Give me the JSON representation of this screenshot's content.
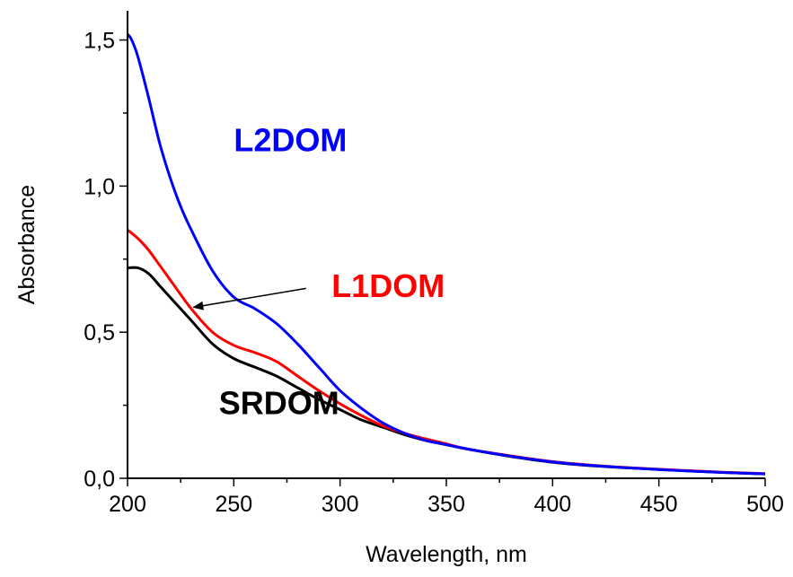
{
  "chart_data": {
    "type": "line",
    "xlabel": "Wavelength, nm",
    "ylabel": "Absorbance",
    "xlim": [
      200,
      500
    ],
    "ylim": [
      0.0,
      1.6
    ],
    "x_ticks": [
      {
        "value": 200,
        "label": "200"
      },
      {
        "value": 250,
        "label": "250"
      },
      {
        "value": 300,
        "label": "300"
      },
      {
        "value": 350,
        "label": "350"
      },
      {
        "value": 400,
        "label": "400"
      },
      {
        "value": 450,
        "label": "450"
      },
      {
        "value": 500,
        "label": "500"
      }
    ],
    "y_ticks": [
      {
        "value": 0.0,
        "label": "0,0"
      },
      {
        "value": 0.5,
        "label": "0,5"
      },
      {
        "value": 1.0,
        "label": "1,0"
      },
      {
        "value": 1.5,
        "label": "1,5"
      }
    ],
    "grid": false,
    "series": [
      {
        "name": "SRDOM",
        "color": "#000000",
        "x": [
          200,
          205,
          210,
          215,
          220,
          230,
          240,
          250,
          260,
          270,
          280,
          290,
          300,
          310,
          320,
          330,
          340,
          350,
          360,
          380,
          400,
          420,
          450,
          480,
          500
        ],
        "y": [
          0.72,
          0.72,
          0.7,
          0.66,
          0.62,
          0.54,
          0.46,
          0.41,
          0.38,
          0.35,
          0.31,
          0.27,
          0.235,
          0.2,
          0.175,
          0.15,
          0.13,
          0.115,
          0.1,
          0.075,
          0.055,
          0.042,
          0.03,
          0.02,
          0.015
        ]
      },
      {
        "name": "L1DOM",
        "color": "#ff0000",
        "x": [
          200,
          205,
          210,
          215,
          220,
          230,
          240,
          250,
          260,
          270,
          280,
          290,
          300,
          310,
          320,
          330,
          340,
          350,
          360,
          380,
          400,
          420,
          450,
          480,
          500
        ],
        "y": [
          0.85,
          0.82,
          0.78,
          0.73,
          0.68,
          0.58,
          0.5,
          0.455,
          0.43,
          0.4,
          0.35,
          0.3,
          0.255,
          0.215,
          0.18,
          0.155,
          0.135,
          0.118,
          0.1,
          0.077,
          0.057,
          0.044,
          0.031,
          0.021,
          0.016
        ]
      },
      {
        "name": "L2DOM",
        "color": "#0000ff",
        "x": [
          200,
          202,
          205,
          210,
          215,
          220,
          225,
          230,
          240,
          250,
          260,
          270,
          280,
          290,
          300,
          310,
          320,
          330,
          340,
          350,
          360,
          380,
          400,
          420,
          450,
          480,
          500
        ],
        "y": [
          1.52,
          1.5,
          1.44,
          1.3,
          1.15,
          1.03,
          0.93,
          0.85,
          0.71,
          0.62,
          0.58,
          0.53,
          0.46,
          0.38,
          0.3,
          0.24,
          0.19,
          0.155,
          0.13,
          0.115,
          0.1,
          0.076,
          0.056,
          0.043,
          0.03,
          0.02,
          0.015
        ]
      }
    ],
    "annotations": [
      {
        "text": "L2DOM",
        "color": "#0000ff",
        "x": 250,
        "y": 1.12
      },
      {
        "text": "L1DOM",
        "color": "#ff0000",
        "x": 296,
        "y": 0.62
      },
      {
        "text": "SRDOM",
        "color": "#000000",
        "x": 243,
        "y": 0.22
      }
    ],
    "arrow": {
      "from": [
        284,
        0.65
      ],
      "to": [
        231,
        0.585
      ]
    }
  }
}
